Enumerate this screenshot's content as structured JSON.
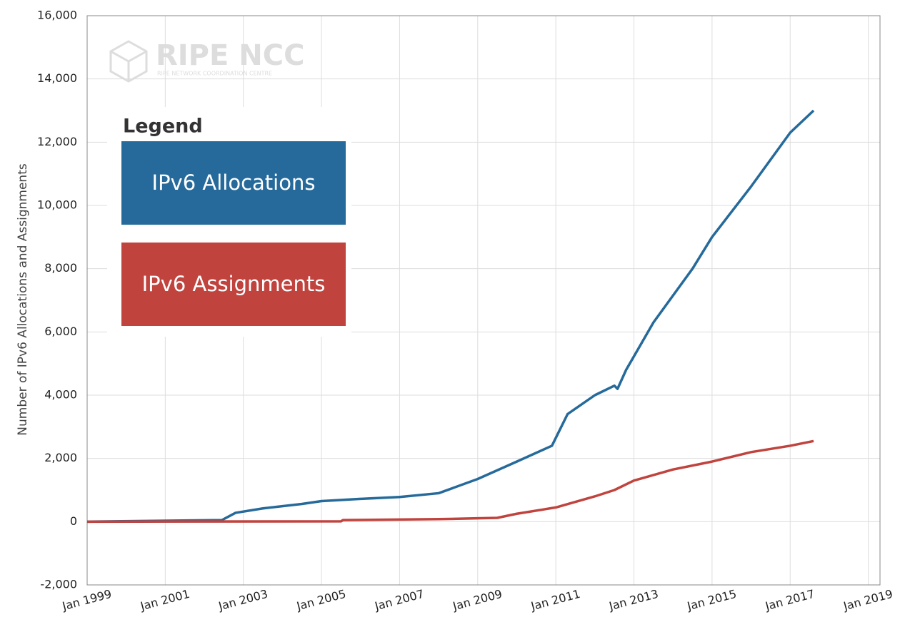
{
  "chart_data": {
    "type": "line",
    "watermark": "RIPE NCC",
    "watermark_subtitle": "RIPE NETWORK COORDINATION CENTRE",
    "ylabel": "Number of IPv6 Allocations and Assignments",
    "legend_title": "Legend",
    "xlim": [
      1999,
      2019.3
    ],
    "xticks": [
      {
        "value": 1999,
        "label": "Jan 1999"
      },
      {
        "value": 2001,
        "label": "Jan 2001"
      },
      {
        "value": 2003,
        "label": "Jan 2003"
      },
      {
        "value": 2005,
        "label": "Jan 2005"
      },
      {
        "value": 2007,
        "label": "Jan 2007"
      },
      {
        "value": 2009,
        "label": "Jan 2009"
      },
      {
        "value": 2011,
        "label": "Jan 2011"
      },
      {
        "value": 2013,
        "label": "Jan 2013"
      },
      {
        "value": 2015,
        "label": "Jan 2015"
      },
      {
        "value": 2017,
        "label": "Jan 2017"
      },
      {
        "value": 2019,
        "label": "Jan 2019"
      }
    ],
    "ylim": [
      -2000,
      16000
    ],
    "yticks": [
      {
        "value": -2000,
        "label": "-2,000"
      },
      0,
      {
        "value": 2000,
        "label": "2,000"
      },
      {
        "value": 4000,
        "label": "4,000"
      },
      {
        "value": 6000,
        "label": "6,000"
      },
      {
        "value": 8000,
        "label": "8,000"
      },
      {
        "value": 10000,
        "label": "10,000"
      },
      {
        "value": 12000,
        "label": "12,000"
      },
      {
        "value": 14000,
        "label": "14,000"
      },
      {
        "value": 16000,
        "label": "16,000"
      }
    ],
    "grid": true,
    "series": [
      {
        "name": "IPv6 Allocations",
        "color": "#256a9a",
        "x": [
          1999,
          2002.45,
          2002.8,
          2003.5,
          2004.5,
          2005,
          2006,
          2007,
          2008,
          2009,
          2010,
          2010.9,
          2011.3,
          2012,
          2012.5,
          2012.58,
          2012.8,
          2013.5,
          2014.5,
          2015,
          2016,
          2017,
          2017.6
        ],
        "values": [
          0,
          50,
          280,
          420,
          560,
          650,
          720,
          780,
          900,
          1350,
          1900,
          2400,
          3400,
          4000,
          4300,
          4200,
          4800,
          6300,
          8000,
          9000,
          10600,
          12300,
          13000
        ]
      },
      {
        "name": "IPv6 Assignments",
        "color": "#c0433e",
        "x": [
          1999,
          2005.5,
          2005.55,
          2008,
          2009.5,
          2010,
          2011,
          2012,
          2012.5,
          2013,
          2014,
          2015,
          2016,
          2017,
          2017.6
        ],
        "values": [
          0,
          10,
          50,
          80,
          120,
          250,
          450,
          800,
          1000,
          1300,
          1650,
          1900,
          2200,
          2400,
          2550
        ]
      }
    ]
  }
}
